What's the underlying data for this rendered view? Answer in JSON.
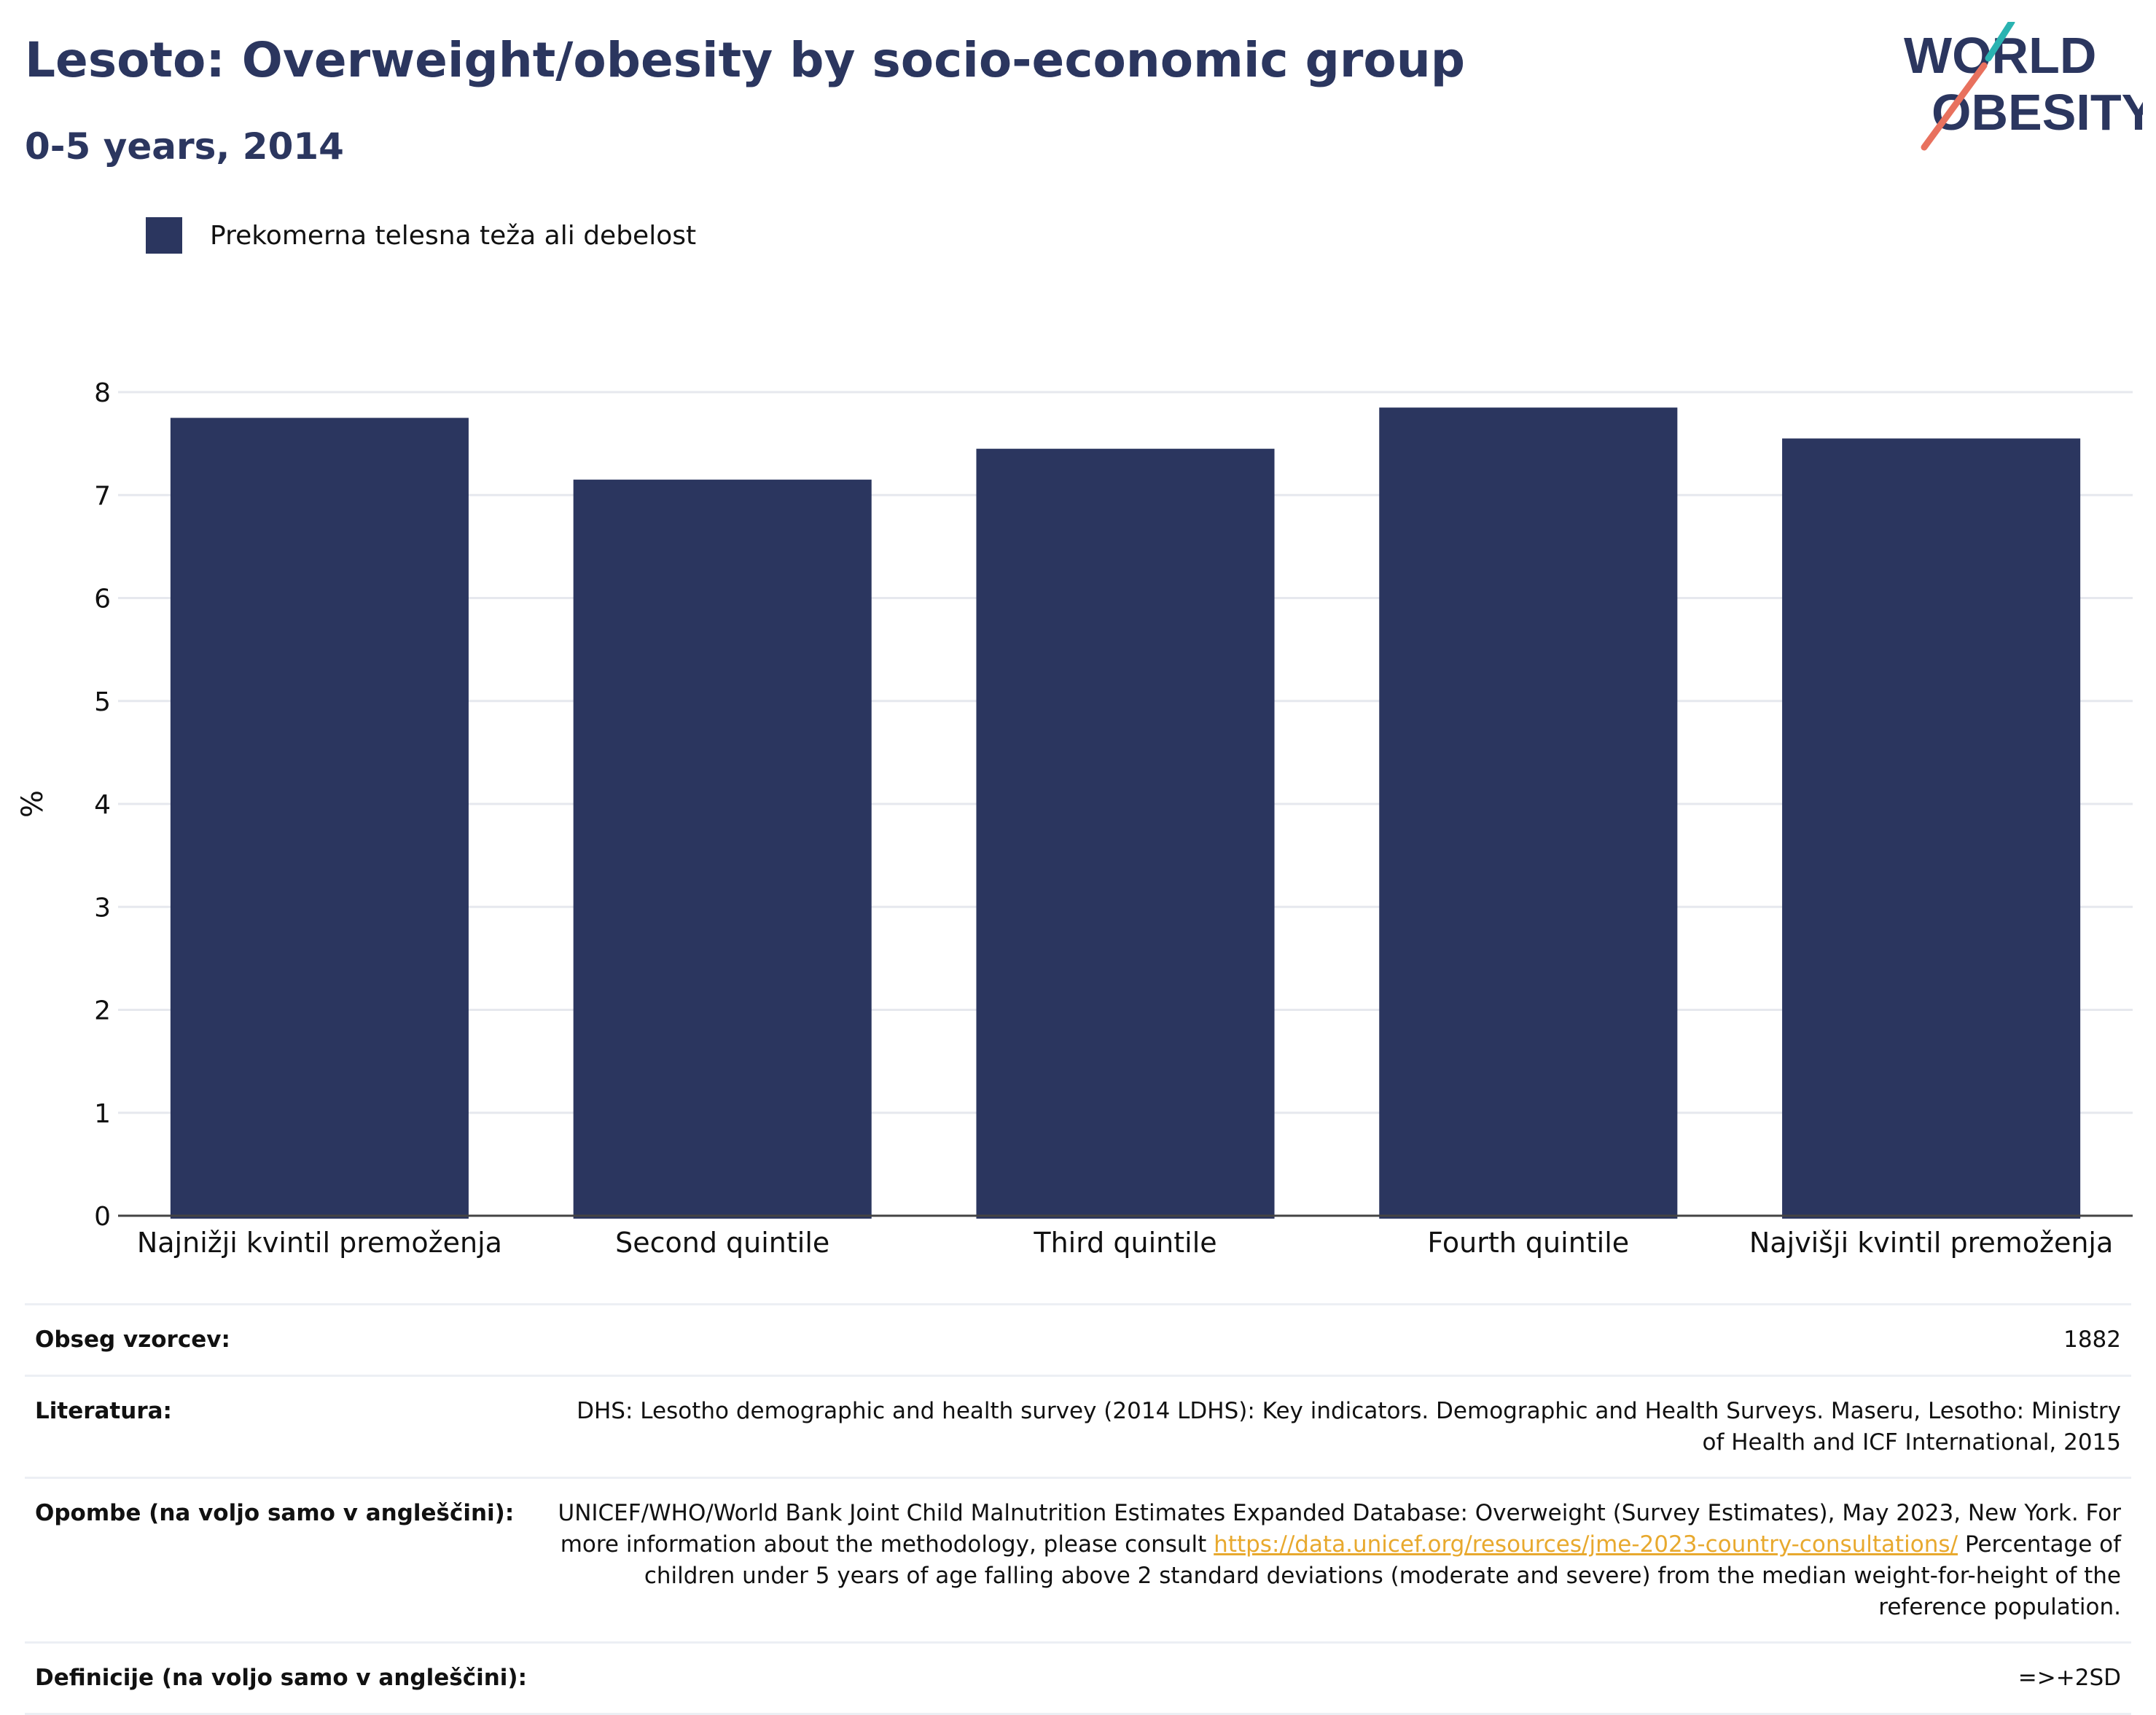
{
  "header": {
    "title": "Lesoto: Overweight/obesity by socio-economic group",
    "subtitle": "0-5 years, 2014"
  },
  "logo": {
    "line1": "WORLD",
    "line2": "OBESITY",
    "accent_teal": "#2ab3b1",
    "accent_coral": "#e8715e",
    "text_color": "#2b365f"
  },
  "legend": {
    "label": "Prekomerna telesna teža ali debelost",
    "color": "#2b365f"
  },
  "chart_data": {
    "type": "bar",
    "categories": [
      "Najnižji kvintil premoženja",
      "Second quintile",
      "Third quintile",
      "Fourth quintile",
      "Najvišji kvintil premoženja"
    ],
    "series": [
      {
        "name": "Prekomerna telesna teža ali debelost",
        "values": [
          7.75,
          7.15,
          7.45,
          7.85,
          7.55
        ],
        "color": "#2b365f"
      }
    ],
    "ylabel": "%",
    "ylim": [
      0,
      8
    ],
    "yticks": [
      0,
      1,
      2,
      3,
      4,
      5,
      6,
      7,
      8
    ],
    "grid": true,
    "legend_position": "top-left"
  },
  "info": {
    "sample_size": {
      "label": "Obseg vzorcev:",
      "value": "1882"
    },
    "literature": {
      "label": "Literatura:",
      "value": "DHS: Lesotho demographic and health survey (2014 LDHS): Key indicators. Demographic and Health Surveys. Maseru, Lesotho: Ministry of Health and ICF International, 2015"
    },
    "notes": {
      "label": "Opombe (na voljo samo v angleščini):",
      "text_before": "UNICEF/WHO/World Bank Joint Child Malnutrition Estimates Expanded Database: Overweight (Survey Estimates), May 2023, New York. For more information about the methodology, please consult ",
      "link": "https://data.unicef.org/resources/jme-2023-country-consultations/",
      "text_after": " Percentage of children under 5 years of age falling above 2 standard deviations (moderate and severe) from the median weight-for-height of the reference population."
    },
    "definitions": {
      "label": "Definicije (na voljo samo v angleščini):",
      "value": "=>+2SD"
    }
  }
}
